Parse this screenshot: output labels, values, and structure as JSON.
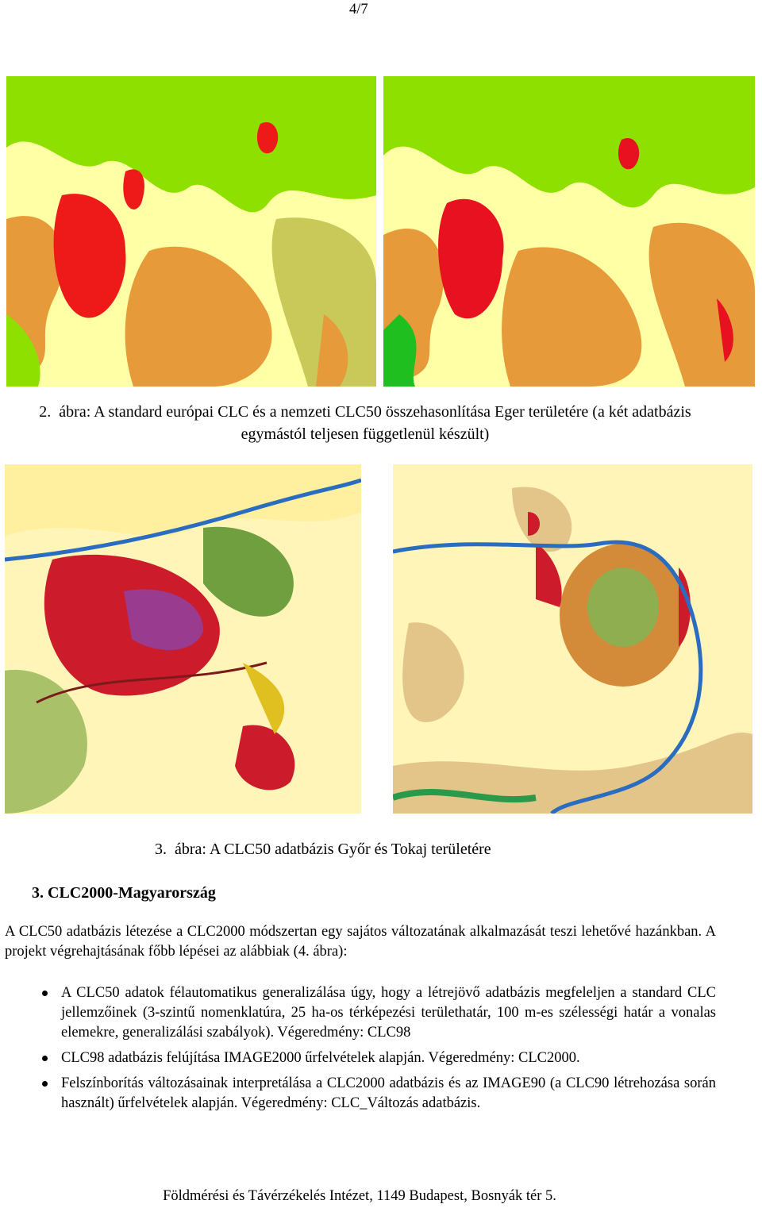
{
  "page_number": "4/7",
  "figure2": {
    "caption_number": "2.",
    "caption": "ábra: A standard európai CLC és a nemzeti CLC50 összehasonlítása Eger területére (a két adatbázis egymástól teljesen függetlenül készült)"
  },
  "figure3": {
    "caption_number": "3.",
    "caption": "ábra: A CLC50 adatbázis Győr és Tokaj területére"
  },
  "section": {
    "heading": "3. CLC2000-Magyarország",
    "paragraph": "A CLC50 adatbázis létezése a CLC2000 módszertan egy sajátos változatának alkalmazását teszi lehetővé hazánkban. A projekt végrehajtásának főbb lépései az alábbiak (4. ábra):",
    "bullets": [
      "A CLC50 adatok félautomatikus generalizálása úgy, hogy a létrejövő adatbázis megfeleljen a standard CLC jellemzőinek (3-szintű nomenklatúra, 25 ha-os térképezési területhatár, 100 m-es szélességi határ a vonalas elemekre, generalizálási szabályok). Végeredmény: CLC98",
      "CLC98 adatbázis felújítása IMAGE2000 űrfelvételek alapján. Végeredmény: CLC2000.",
      "Felszínborítás változásainak interpretálása a CLC2000 adatbázis és az IMAGE90 (a CLC90 létrehozása során használt) űrfelvételek alapján. Végeredmény: CLC_Változás adatbázis."
    ]
  },
  "footer": "Földmérési és Távérzékelés Intézet, 1149 Budapest, Bosnyák tér 5."
}
